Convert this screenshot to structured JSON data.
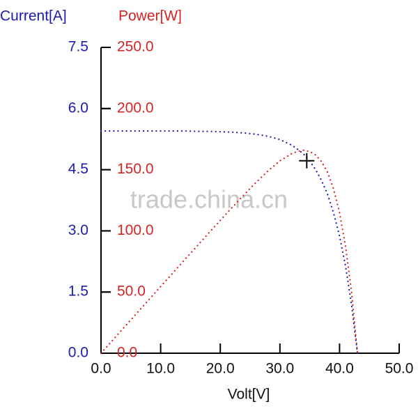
{
  "chart_data": {
    "type": "line",
    "y_label": "Current[A]",
    "y2_label": "Power[W]",
    "x_label": "Volt[V]",
    "watermark": "trade.china.cn",
    "x": [
      0,
      2,
      4,
      6,
      8,
      10,
      12,
      14,
      16,
      18,
      20,
      22,
      24,
      26,
      28,
      30,
      32,
      33,
      34,
      35,
      36,
      37,
      38,
      39,
      40,
      41,
      42,
      43
    ],
    "series": [
      {
        "color": "#1c1cae",
        "values": [
          5.45,
          5.45,
          5.45,
          5.45,
          5.45,
          5.45,
          5.45,
          5.45,
          5.44,
          5.44,
          5.43,
          5.42,
          5.4,
          5.37,
          5.32,
          5.24,
          5.1,
          5.0,
          4.88,
          4.71,
          4.5,
          4.23,
          3.89,
          3.44,
          2.87,
          2.14,
          1.2,
          0
        ]
      },
      {
        "color": "#d42424",
        "axis": "y2",
        "values": [
          0,
          10.9,
          21.8,
          32.7,
          43.6,
          54.5,
          65.4,
          76.3,
          87.0,
          97.9,
          108.6,
          119.2,
          129.6,
          139.6,
          149.0,
          157.2,
          163.2,
          165.0,
          165.9,
          164.9,
          162.0,
          156.5,
          147.8,
          134.2,
          114.8,
          87.7,
          50.4,
          0
        ]
      }
    ],
    "marker": {
      "x": 34.5,
      "y": 4.72
    },
    "xlim": [
      0,
      50
    ],
    "ylim": [
      0,
      7.5
    ],
    "y2lim": [
      0,
      250
    ],
    "xticks": [
      {
        "value": 0,
        "label": "0.0"
      },
      {
        "value": 10,
        "label": "10.0"
      },
      {
        "value": 20,
        "label": "20.0"
      },
      {
        "value": 30,
        "label": "30.0"
      },
      {
        "value": 40,
        "label": "40.0"
      },
      {
        "value": 50,
        "label": "50.0"
      }
    ],
    "yticks": [
      {
        "value": 0,
        "label": "0.0"
      },
      1.5,
      {
        "value": 3,
        "label": "3.0"
      },
      4.5,
      {
        "value": 6,
        "label": "6.0"
      },
      7.5
    ],
    "y2ticks": [
      {
        "value": 0,
        "label": "0.0"
      },
      {
        "value": 50,
        "label": "50.0"
      },
      {
        "value": 100,
        "label": "100.0"
      },
      {
        "value": 150,
        "label": "150.0"
      },
      {
        "value": 200,
        "label": "200.0"
      },
      {
        "value": 250,
        "label": "250.0"
      }
    ]
  }
}
